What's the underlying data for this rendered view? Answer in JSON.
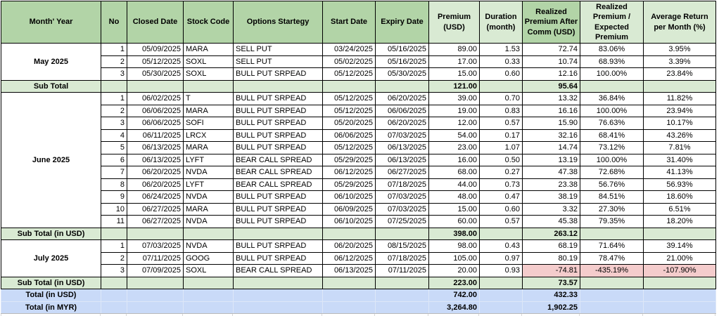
{
  "colors": {
    "header_green": "#b2d4a7",
    "light_green": "#d9ead3",
    "total_blue": "#c9daf8",
    "negative_pink": "#f4cccc"
  },
  "table": {
    "columns": [
      {
        "id": "month-year",
        "label": "Month' Year",
        "tone": "dark"
      },
      {
        "id": "no",
        "label": "No",
        "tone": "dark"
      },
      {
        "id": "closed-date",
        "label": "Closed Date",
        "tone": "dark"
      },
      {
        "id": "stock-code",
        "label": "Stock Code",
        "tone": "dark"
      },
      {
        "id": "options-strategy",
        "label": "Options Startegy",
        "tone": "dark"
      },
      {
        "id": "start-date",
        "label": "Start Date",
        "tone": "dark"
      },
      {
        "id": "expiry-date",
        "label": "Expiry Date",
        "tone": "dark"
      },
      {
        "id": "premium-usd",
        "label": "Premium (USD)",
        "tone": "light"
      },
      {
        "id": "duration-month",
        "label": "Duration (month)",
        "tone": "light"
      },
      {
        "id": "realized-premium-after-comm",
        "label": "Realized Premium After Comm (USD)",
        "tone": "dark"
      },
      {
        "id": "realized-vs-expected-premium",
        "label": "Realized Premium / Expected Premium",
        "tone": "light"
      },
      {
        "id": "average-return-per-month",
        "label": "Average Return per Month (%)",
        "tone": "light"
      }
    ],
    "groups": [
      {
        "month": "May 2025",
        "rows": [
          {
            "no": "1",
            "closed_date": "05/09/2025",
            "stock_code": "MARA",
            "strategy": "SELL PUT",
            "start_date": "03/24/2025",
            "expiry_date": "05/16/2025",
            "premium": "89.00",
            "duration": "1.53",
            "realized": "72.74",
            "ratio": "83.06%",
            "avg_return": "3.95%"
          },
          {
            "no": "2",
            "closed_date": "05/12/2025",
            "stock_code": "SOXL",
            "strategy": "SELL PUT",
            "start_date": "05/02/2025",
            "expiry_date": "05/16/2025",
            "premium": "17.00",
            "duration": "0.33",
            "realized": "10.74",
            "ratio": "68.93%",
            "avg_return": "3.39%"
          },
          {
            "no": "3",
            "closed_date": "05/30/2025",
            "stock_code": "SOXL",
            "strategy": "BULL PUT SRPEAD",
            "start_date": "05/12/2025",
            "expiry_date": "05/30/2025",
            "premium": "15.00",
            "duration": "0.60",
            "realized": "12.16",
            "ratio": "100.00%",
            "avg_return": "23.84%"
          }
        ],
        "subtotal": {
          "label": "Sub Total",
          "premium": "121.00",
          "realized": "95.64"
        }
      },
      {
        "month": "June 2025",
        "rows": [
          {
            "no": "1",
            "closed_date": "06/02/2025",
            "stock_code": "T",
            "strategy": "BULL PUT SRPEAD",
            "start_date": "05/12/2025",
            "expiry_date": "06/20/2025",
            "premium": "39.00",
            "duration": "0.70",
            "realized": "13.32",
            "ratio": "36.84%",
            "avg_return": "11.82%"
          },
          {
            "no": "2",
            "closed_date": "06/06/2025",
            "stock_code": "MARA",
            "strategy": "BULL PUT SRPEAD",
            "start_date": "05/12/2025",
            "expiry_date": "06/06/2025",
            "premium": "19.00",
            "duration": "0.83",
            "realized": "16.16",
            "ratio": "100.00%",
            "avg_return": "23.94%"
          },
          {
            "no": "3",
            "closed_date": "06/06/2025",
            "stock_code": "SOFI",
            "strategy": "BULL PUT SRPEAD",
            "start_date": "05/20/2025",
            "expiry_date": "06/20/2025",
            "premium": "12.00",
            "duration": "0.57",
            "realized": "15.90",
            "ratio": "76.63%",
            "avg_return": "10.17%"
          },
          {
            "no": "4",
            "closed_date": "06/11/2025",
            "stock_code": "LRCX",
            "strategy": "BULL PUT SRPEAD",
            "start_date": "06/06/2025",
            "expiry_date": "07/03/2025",
            "premium": "54.00",
            "duration": "0.17",
            "realized": "32.16",
            "ratio": "68.41%",
            "avg_return": "43.26%"
          },
          {
            "no": "5",
            "closed_date": "06/13/2025",
            "stock_code": "MARA",
            "strategy": "BULL PUT SRPEAD",
            "start_date": "05/12/2025",
            "expiry_date": "06/13/2025",
            "premium": "23.00",
            "duration": "1.07",
            "realized": "14.74",
            "ratio": "73.12%",
            "avg_return": "7.81%"
          },
          {
            "no": "6",
            "closed_date": "06/13/2025",
            "stock_code": "LYFT",
            "strategy": "BEAR CALL SPREAD",
            "start_date": "05/29/2025",
            "expiry_date": "06/13/2025",
            "premium": "16.00",
            "duration": "0.50",
            "realized": "13.19",
            "ratio": "100.00%",
            "avg_return": "31.40%"
          },
          {
            "no": "7",
            "closed_date": "06/20/2025",
            "stock_code": "NVDA",
            "strategy": "BEAR CALL SPREAD",
            "start_date": "06/12/2025",
            "expiry_date": "06/27/2025",
            "premium": "68.00",
            "duration": "0.27",
            "realized": "47.38",
            "ratio": "72.68%",
            "avg_return": "41.13%"
          },
          {
            "no": "8",
            "closed_date": "06/20/2025",
            "stock_code": "LYFT",
            "strategy": "BEAR CALL SPREAD",
            "start_date": "05/29/2025",
            "expiry_date": "07/18/2025",
            "premium": "44.00",
            "duration": "0.73",
            "realized": "23.38",
            "ratio": "56.76%",
            "avg_return": "56.93%"
          },
          {
            "no": "9",
            "closed_date": "06/24/2025",
            "stock_code": "NVDA",
            "strategy": "BULL PUT SRPEAD",
            "start_date": "06/10/2025",
            "expiry_date": "07/03/2025",
            "premium": "48.00",
            "duration": "0.47",
            "realized": "38.19",
            "ratio": "84.51%",
            "avg_return": "18.60%"
          },
          {
            "no": "10",
            "closed_date": "06/27/2025",
            "stock_code": "MARA",
            "strategy": "BULL PUT SRPEAD",
            "start_date": "06/09/2025",
            "expiry_date": "07/03/2025",
            "premium": "15.00",
            "duration": "0.60",
            "realized": "3.32",
            "ratio": "27.30%",
            "avg_return": "6.51%"
          },
          {
            "no": "11",
            "closed_date": "06/27/2025",
            "stock_code": "NVDA",
            "strategy": "BULL PUT SRPEAD",
            "start_date": "06/10/2025",
            "expiry_date": "07/25/2025",
            "premium": "60.00",
            "duration": "0.57",
            "realized": "45.38",
            "ratio": "79.35%",
            "avg_return": "18.20%"
          }
        ],
        "subtotal": {
          "label": "Sub Total (in USD)",
          "premium": "398.00",
          "realized": "263.12"
        }
      },
      {
        "month": "July 2025",
        "rows": [
          {
            "no": "1",
            "closed_date": "07/03/2025",
            "stock_code": "NVDA",
            "strategy": "BULL PUT SRPEAD",
            "start_date": "06/20/2025",
            "expiry_date": "08/15/2025",
            "premium": "98.00",
            "duration": "0.43",
            "realized": "68.19",
            "ratio": "71.64%",
            "avg_return": "39.14%"
          },
          {
            "no": "2",
            "closed_date": "07/11/2025",
            "stock_code": "GOOG",
            "strategy": "BULL PUT SRPEAD",
            "start_date": "06/12/2025",
            "expiry_date": "07/18/2025",
            "premium": "105.00",
            "duration": "0.97",
            "realized": "80.19",
            "ratio": "78.47%",
            "avg_return": "21.00%"
          },
          {
            "no": "3",
            "closed_date": "07/09/2025",
            "stock_code": "SOXL",
            "strategy": "BEAR CALL SPREAD",
            "start_date": "06/13/2025",
            "expiry_date": "07/11/2025",
            "premium": "20.00",
            "duration": "0.93",
            "realized": "-74.81",
            "ratio": "-435.19%",
            "avg_return": "-107.90%",
            "negative": true
          }
        ],
        "subtotal": {
          "label": "Sub Total (in USD)",
          "premium": "223.00",
          "realized": "73.57"
        }
      }
    ],
    "totals": [
      {
        "label": "Total (in USD)",
        "premium": "742.00",
        "realized": "432.33"
      },
      {
        "label": "Total (in MYR)",
        "premium": "3,264.80",
        "realized": "1,902.25"
      }
    ]
  }
}
